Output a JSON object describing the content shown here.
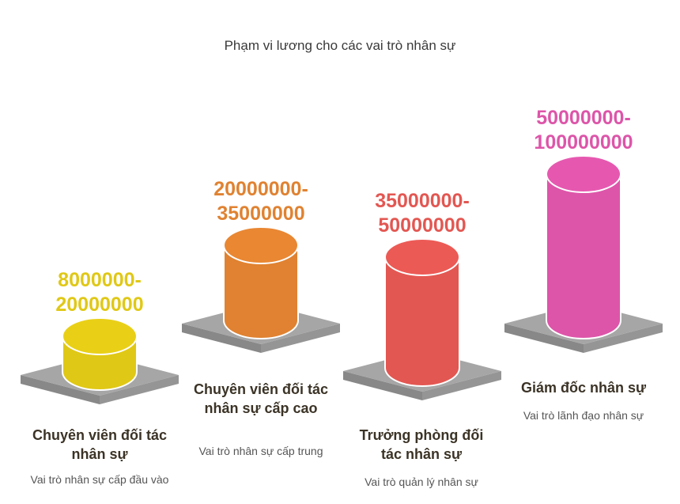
{
  "chart_data": {
    "type": "bar",
    "title": "Phạm vi lương cho các vai trò nhân sự",
    "categories": [
      "Chuyên viên đối tác nhân sự",
      "Chuyên viên đối tác nhân sự cấp cao",
      "Trưởng phòng đối tác nhân sự",
      "Giám đốc nhân sự"
    ],
    "series": [
      {
        "ranges": [
          [
            8000000,
            20000000
          ],
          [
            20000000,
            35000000
          ],
          [
            35000000,
            50000000
          ],
          [
            50000000,
            100000000
          ]
        ],
        "labels": [
          "8000000-\n20000000",
          "20000000-\n35000000",
          "35000000-\n50000000",
          "50000000-\n100000000"
        ]
      }
    ],
    "descriptions": [
      "Vai trò nhân sự cấp đầu vào",
      "Vai trò nhân sự cấp trung",
      "Vai trò quản lý nhân sự",
      "Vai trò lãnh đạo nhân sự"
    ],
    "colors": [
      "#e0c816",
      "#e08231",
      "#e35752",
      "#dd55a9"
    ],
    "platform_color": "#a6a6a6"
  }
}
